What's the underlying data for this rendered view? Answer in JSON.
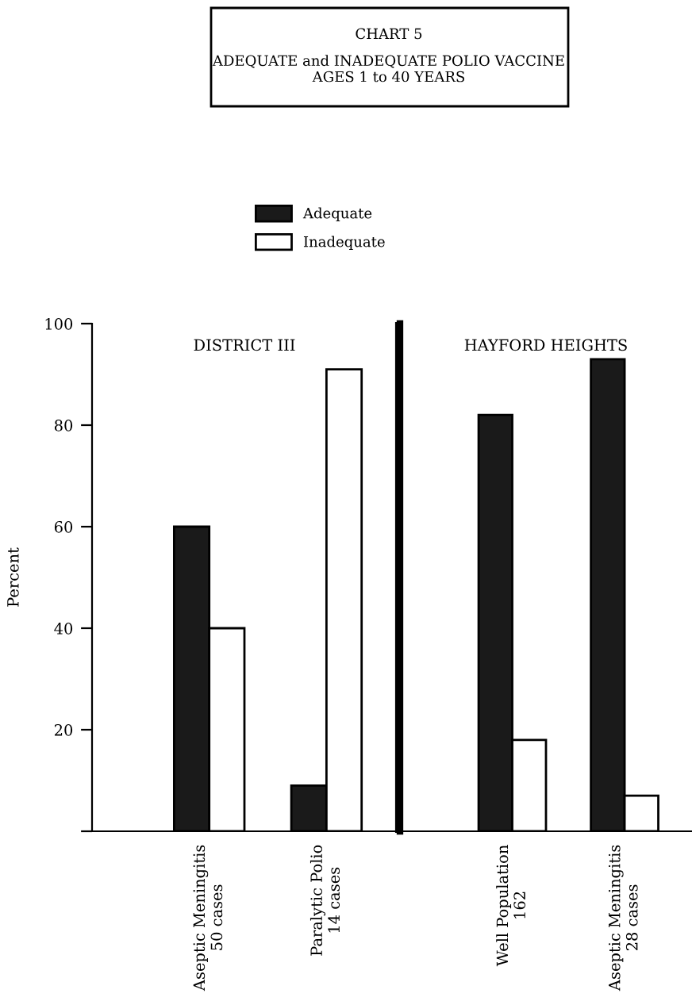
{
  "chart_data": [
    {
      "type": "bar",
      "title": "CHART 5",
      "subtitle": "ADEQUATE and INADEQUATE POLIO VACCINE\nAGES 1 to 40 YEARS",
      "annotations": [
        "DISTRICT III"
      ],
      "ylabel": "Percent",
      "categories": [
        "Aseptic Meningitis\n50 cases",
        "Paralytic Polio\n14 cases"
      ],
      "series": [
        {
          "name": "Adequate",
          "color": "#1a1a1a",
          "values": [
            60,
            9
          ]
        },
        {
          "name": "Inadequate",
          "color": "#ffffff",
          "values": [
            40,
            91
          ]
        }
      ],
      "ylim": [
        0,
        100
      ],
      "yticks": [
        {
          "value": 0,
          "label": null
        },
        20,
        40,
        60,
        80,
        100
      ],
      "legend": "top"
    },
    {
      "type": "bar",
      "annotations": [
        "HAYFORD HEIGHTS"
      ],
      "categories": [
        "Well Population\n162",
        "Aseptic Meningitis\n28 cases"
      ],
      "series": [
        {
          "color": "#1a1a1a",
          "values": [
            82,
            93
          ]
        },
        {
          "color": "#ffffff",
          "values": [
            18,
            7
          ]
        }
      ],
      "ylim": [
        0,
        100
      ],
      "yticks": [
        {
          "value": 0,
          "label": null
        },
        20,
        40,
        60,
        80,
        100
      ],
      "tick_labels": "x"
    }
  ]
}
